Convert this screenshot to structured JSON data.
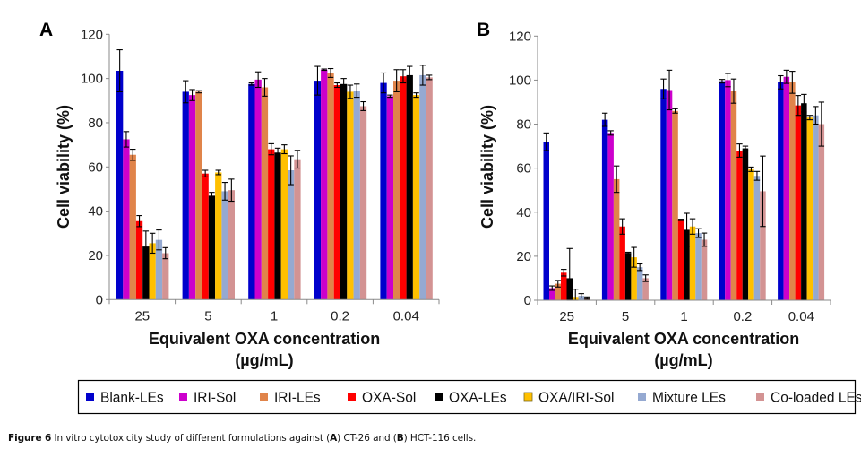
{
  "figure": {
    "caption": {
      "label": "Figure 6",
      "text_before_a": " In vitro cytotoxicity study of different formulations against (",
      "a": "A",
      "text_mid": ") CT-26 and (",
      "b": "B",
      "text_after_b": ") HCT-116 cells."
    }
  },
  "legend": {
    "items": [
      {
        "label": "Blank-LEs",
        "color": "#0000CC"
      },
      {
        "label": "IRI-Sol",
        "color": "#CC00CC"
      },
      {
        "label": "IRI-LEs",
        "color": "#E0844A"
      },
      {
        "label": "OXA-Sol",
        "color": "#FF0000"
      },
      {
        "label": "OXA-LEs",
        "color": "#000000"
      },
      {
        "label": "OXA/IRI-Sol",
        "color": "#FFC000"
      },
      {
        "label": "Mixture LEs",
        "color": "#95A9D1"
      },
      {
        "label": "Co-loaded LEs",
        "color": "#D39393"
      }
    ]
  },
  "chart_data": [
    {
      "type": "bar",
      "panel": "A",
      "title": "",
      "subtitle": "CT-26",
      "xlabel": "Equivalent OXA concentration",
      "xlabel_unit": "(µg/mL)",
      "ylabel": "Cell viability (%)",
      "ylim": [
        0,
        120
      ],
      "yticks": [
        0,
        20,
        40,
        60,
        80,
        100,
        120
      ],
      "grid": false,
      "legend_position": "bottom",
      "categories": [
        "25",
        "5",
        "1",
        "0.2",
        "0.04"
      ],
      "series": [
        {
          "name": "Blank-LEs",
          "values": [
            103.5,
            94,
            97.5,
            99,
            98
          ],
          "errors": [
            9.5,
            5,
            0.5,
            6.5,
            4.5
          ]
        },
        {
          "name": "IRI-Sol",
          "values": [
            72.5,
            92.5,
            99.5,
            104,
            92
          ],
          "errors": [
            3.5,
            2.5,
            3.5,
            0.3,
            0.5
          ]
        },
        {
          "name": "IRI-LEs",
          "values": [
            65.5,
            94,
            96,
            102.5,
            99
          ],
          "errors": [
            2.5,
            0.5,
            4,
            2,
            5
          ]
        },
        {
          "name": "OXA-Sol",
          "values": [
            35.5,
            57,
            68,
            97,
            101
          ],
          "errors": [
            2.5,
            1.5,
            2.5,
            1,
            3
          ]
        },
        {
          "name": "OXA-LEs",
          "values": [
            24,
            47,
            66.5,
            97.5,
            101.5
          ],
          "errors": [
            7,
            1.5,
            2,
            2.5,
            4
          ]
        },
        {
          "name": "OXA/IRI-Sol",
          "values": [
            25.5,
            57.5,
            68,
            94,
            92.5
          ],
          "errors": [
            4.5,
            1,
            2,
            3,
            1
          ]
        },
        {
          "name": "Mixture LEs",
          "values": [
            27,
            49,
            58.5,
            94.5,
            101.5
          ],
          "errors": [
            4.5,
            4,
            6.5,
            3,
            4.5
          ]
        },
        {
          "name": "Co-loaded LEs",
          "values": [
            21,
            49.5,
            63.5,
            87.5,
            100.5
          ],
          "errors": [
            2.5,
            5,
            4,
            2,
            1
          ]
        }
      ]
    },
    {
      "type": "bar",
      "panel": "B",
      "title": "",
      "subtitle": "HCT-116",
      "xlabel": "Equivalent OXA concentration",
      "xlabel_unit": "(µg/mL)",
      "ylabel": "Cell viability (%)",
      "ylim": [
        0,
        120
      ],
      "yticks": [
        0,
        20,
        40,
        60,
        80,
        100,
        120
      ],
      "grid": false,
      "legend_position": "bottom",
      "categories": [
        "25",
        "5",
        "1",
        "0.2",
        "0.04"
      ],
      "series": [
        {
          "name": "Blank-LEs",
          "values": [
            72,
            82,
            96,
            99.5,
            99
          ],
          "errors": [
            4,
            3,
            4.5,
            0.8,
            3
          ]
        },
        {
          "name": "IRI-Sol",
          "values": [
            5.5,
            76,
            95.5,
            100,
            101.5
          ],
          "errors": [
            1,
            1,
            9,
            3,
            3
          ]
        },
        {
          "name": "IRI-LEs",
          "values": [
            7.5,
            55,
            86,
            95,
            99
          ],
          "errors": [
            1.5,
            6,
            1,
            5.5,
            5
          ]
        },
        {
          "name": "OXA-Sol",
          "values": [
            12.5,
            33.5,
            36.5,
            68,
            88.5
          ],
          "errors": [
            1.5,
            3.5,
            0.3,
            3,
            4.5
          ]
        },
        {
          "name": "OXA-LEs",
          "values": [
            10,
            21.5,
            32,
            69,
            89.5
          ],
          "errors": [
            13.5,
            0.3,
            7.5,
            1,
            4
          ]
        },
        {
          "name": "OXA/IRI-Sol",
          "values": [
            1.5,
            19.5,
            33.5,
            59.5,
            83
          ],
          "errors": [
            3.5,
            4.5,
            3.5,
            1,
            1
          ]
        },
        {
          "name": "Mixture LEs",
          "values": [
            2,
            15,
            30.5,
            56.5,
            84
          ],
          "errors": [
            1,
            1.5,
            2,
            2,
            4
          ]
        },
        {
          "name": "Co-loaded LEs",
          "values": [
            1,
            10,
            27.5,
            49.5,
            80
          ],
          "errors": [
            0.5,
            1.5,
            3,
            16,
            10
          ]
        }
      ]
    }
  ]
}
